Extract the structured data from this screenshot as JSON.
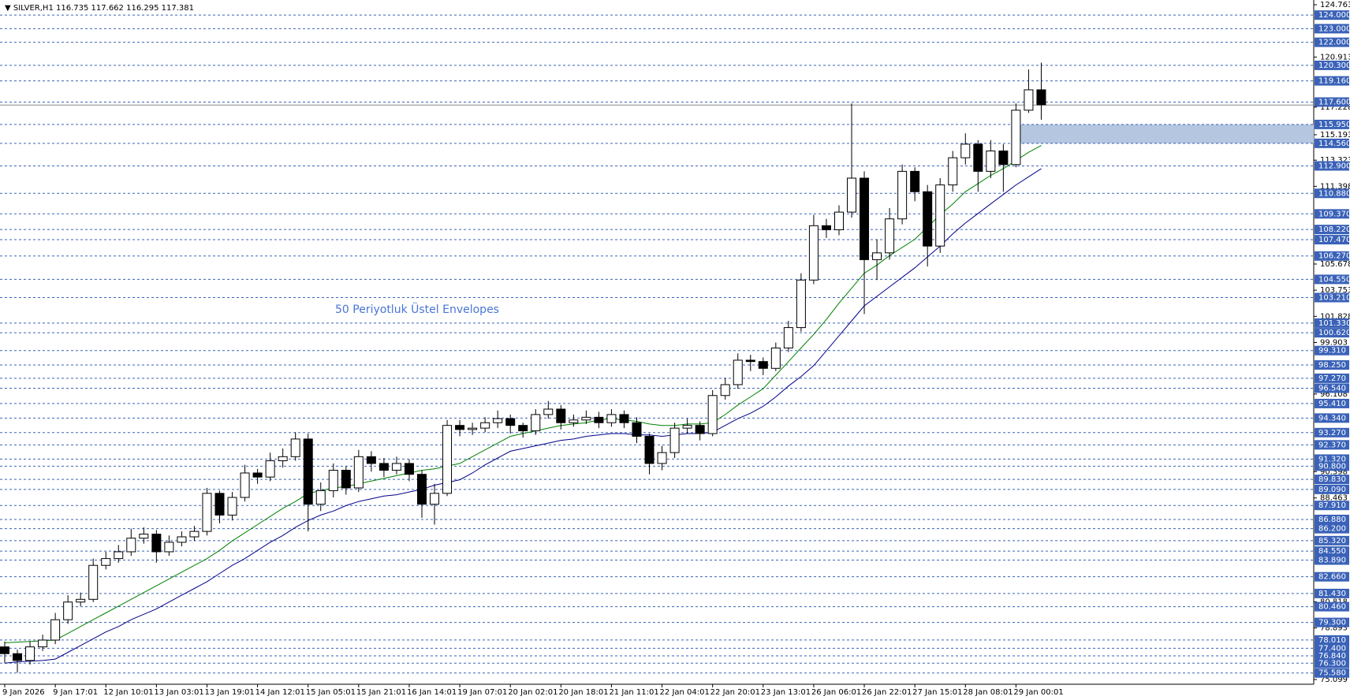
{
  "header": {
    "symbol": "SILVER,H1",
    "values": [
      116.735,
      117.662,
      116.295,
      117.381
    ]
  },
  "chart_data": {
    "type": "candlestick",
    "annotation": "50 Periyotluk Üstel Envelopes",
    "categories": [
      "9 Jan 2026",
      null,
      null,
      null,
      "9 Jan 17:01",
      null,
      null,
      null,
      "12 Jan 10:01",
      null,
      null,
      null,
      "13 Jan 03:01",
      null,
      null,
      null,
      "13 Jan 19:01",
      null,
      null,
      null,
      "14 Jan 12:01",
      null,
      null,
      null,
      "15 Jan 05:01",
      null,
      null,
      null,
      "15 Jan 21:01",
      null,
      null,
      null,
      "16 Jan 14:01",
      null,
      null,
      null,
      "19 Jan 07:01",
      null,
      null,
      null,
      "20 Jan 02:01",
      null,
      null,
      null,
      "20 Jan 18:01",
      null,
      null,
      null,
      "21 Jan 11:01",
      null,
      null,
      null,
      "22 Jan 04:01",
      null,
      null,
      null,
      "22 Jan 20:01",
      null,
      null,
      null,
      "23 Jan 13:01",
      null,
      null,
      null,
      "26 Jan 06:01",
      null,
      null,
      null,
      "26 Jan 22:01",
      null,
      null,
      null,
      "27 Jan 15:01",
      null,
      null,
      null,
      "28 Jan 08:01",
      null,
      null,
      null,
      "29 Jan 00:01",
      null,
      null
    ],
    "open": [
      77.5,
      77.0,
      76.5,
      77.5,
      78.0,
      79.5,
      80.8,
      81.0,
      83.5,
      84.0,
      84.5,
      85.5,
      85.8,
      84.5,
      85.2,
      85.6,
      86.0,
      88.8,
      87.2,
      88.5,
      90.3,
      90.0,
      91.2,
      91.5,
      92.8,
      88.0,
      89.0,
      90.5,
      89.2,
      91.5,
      91.0,
      90.5,
      91.0,
      90.2,
      88.0,
      88.8,
      93.8,
      93.5,
      93.6,
      94.0,
      94.3,
      93.8,
      93.4,
      94.6,
      95.0,
      94.0,
      94.2,
      94.4,
      94.0,
      94.6,
      94.0,
      93.0,
      91.0,
      91.8,
      93.6,
      93.8,
      93.2,
      96.0,
      96.8,
      98.6,
      98.5,
      98.0,
      99.5,
      101.0,
      104.5,
      108.5,
      108.2,
      109.5,
      112.0,
      106.0,
      106.5,
      109.0,
      112.5,
      111.0,
      107.0,
      111.5,
      113.5,
      114.5,
      112.5,
      114.0,
      113.0,
      117.0,
      118.5
    ],
    "high": [
      77.9,
      77.3,
      77.9,
      78.4,
      80.0,
      81.3,
      81.5,
      84.0,
      84.5,
      85.0,
      86.2,
      86.3,
      86.1,
      85.7,
      86.0,
      86.4,
      89.2,
      89.0,
      88.9,
      90.9,
      90.6,
      91.8,
      92.1,
      93.3,
      93.2,
      89.6,
      91.0,
      90.8,
      92.0,
      91.9,
      91.4,
      91.5,
      91.3,
      90.5,
      89.5,
      94.2,
      94.2,
      94.0,
      94.4,
      94.9,
      94.6,
      94.0,
      95.0,
      95.6,
      95.3,
      94.6,
      94.9,
      94.8,
      95.0,
      94.9,
      94.4,
      93.2,
      92.3,
      94.0,
      94.3,
      94.1,
      96.4,
      97.3,
      99.1,
      99.0,
      98.8,
      99.9,
      101.5,
      105.0,
      109.3,
      109.0,
      110.0,
      117.5,
      112.5,
      107.5,
      109.8,
      113.0,
      112.8,
      111.5,
      112.0,
      114.0,
      115.3,
      114.8,
      114.8,
      114.5,
      117.5,
      120.0,
      120.5
    ],
    "low": [
      76.3,
      75.6,
      76.2,
      77.2,
      77.7,
      79.2,
      80.5,
      80.8,
      83.2,
      83.7,
      84.2,
      85.1,
      83.7,
      84.2,
      84.9,
      85.3,
      85.7,
      86.6,
      86.8,
      88.2,
      89.5,
      89.7,
      90.7,
      91.2,
      86.0,
      87.5,
      88.5,
      88.7,
      88.9,
      90.4,
      90.0,
      90.2,
      89.7,
      87.0,
      86.5,
      88.6,
      93.0,
      93.1,
      93.3,
      93.6,
      93.2,
      92.9,
      93.1,
      94.3,
      93.5,
      93.7,
      93.9,
      93.6,
      93.7,
      93.6,
      92.5,
      90.2,
      90.5,
      91.4,
      93.2,
      92.7,
      93.0,
      95.7,
      96.5,
      97.8,
      97.5,
      97.8,
      99.2,
      100.7,
      104.2,
      107.6,
      107.8,
      109.1,
      102.0,
      104.5,
      106.0,
      108.6,
      110.3,
      105.5,
      106.5,
      111.0,
      113.0,
      111.0,
      112.0,
      111.0,
      112.8,
      116.8,
      116.3
    ],
    "close": [
      77.0,
      76.5,
      77.5,
      78.0,
      79.5,
      80.8,
      81.0,
      83.5,
      84.0,
      84.5,
      85.5,
      85.8,
      84.5,
      85.2,
      85.6,
      86.0,
      88.8,
      87.2,
      88.5,
      90.3,
      90.0,
      91.2,
      91.5,
      92.8,
      88.0,
      89.0,
      90.5,
      89.2,
      91.5,
      91.0,
      90.5,
      91.0,
      90.2,
      88.0,
      88.8,
      93.8,
      93.5,
      93.6,
      94.0,
      94.3,
      93.8,
      93.4,
      94.6,
      95.0,
      94.0,
      94.2,
      94.4,
      94.0,
      94.6,
      94.0,
      93.0,
      91.0,
      91.8,
      93.6,
      93.8,
      93.2,
      96.0,
      96.8,
      98.6,
      98.5,
      98.0,
      99.5,
      101.0,
      104.5,
      108.5,
      108.2,
      109.5,
      112.0,
      106.0,
      106.5,
      109.0,
      112.5,
      111.0,
      107.0,
      111.5,
      113.5,
      114.5,
      112.5,
      114.0,
      113.0,
      117.0,
      118.5,
      117.4
    ],
    "lines": [
      {
        "color": "#008000",
        "values": [
          77.8,
          77.85,
          77.9,
          77.95,
          78.0,
          78.5,
          79.0,
          79.5,
          80.0,
          80.5,
          81.0,
          81.5,
          82.0,
          82.5,
          83.0,
          83.5,
          84.0,
          84.6,
          85.3,
          85.9,
          86.5,
          87.1,
          87.7,
          88.2,
          88.8,
          89.0,
          89.2,
          89.3,
          89.5,
          89.7,
          89.9,
          90.1,
          90.3,
          90.5,
          90.6,
          90.8,
          91.0,
          91.5,
          92.0,
          92.5,
          93.0,
          93.2,
          93.4,
          93.6,
          93.8,
          93.9,
          94.0,
          94.2,
          94.3,
          94.2,
          94.1,
          93.9,
          93.8,
          93.8,
          93.9,
          93.9,
          94.0,
          94.6,
          95.3,
          95.9,
          96.5,
          97.5,
          98.5,
          99.5,
          100.5,
          101.6,
          102.8,
          103.9,
          105.0,
          105.6,
          106.3,
          106.9,
          107.5,
          108.4,
          109.3,
          110.1,
          111.0,
          111.6,
          112.2,
          112.7,
          113.3,
          113.9,
          114.4
        ]
      },
      {
        "color": "#00008b",
        "values": [
          76.3,
          76.4,
          76.45,
          76.5,
          76.6,
          77.1,
          77.6,
          78.1,
          78.6,
          79.0,
          79.5,
          79.9,
          80.3,
          80.8,
          81.3,
          81.8,
          82.3,
          82.9,
          83.5,
          84.0,
          84.6,
          85.2,
          85.7,
          86.3,
          86.8,
          87.2,
          87.5,
          87.9,
          88.2,
          88.4,
          88.6,
          88.7,
          88.9,
          89.1,
          89.4,
          89.6,
          89.8,
          90.3,
          90.9,
          91.4,
          91.9,
          92.1,
          92.3,
          92.5,
          92.7,
          92.8,
          93.0,
          93.1,
          93.2,
          93.2,
          93.1,
          93.1,
          93.0,
          93.1,
          93.2,
          93.2,
          93.3,
          93.8,
          94.3,
          94.7,
          95.2,
          95.9,
          96.7,
          97.4,
          98.2,
          99.3,
          100.4,
          101.5,
          102.6,
          103.3,
          104.0,
          104.7,
          105.4,
          106.2,
          107.0,
          107.9,
          108.7,
          109.4,
          110.1,
          110.8,
          111.5,
          112.1,
          112.7
        ]
      }
    ],
    "ylim": [
      75.099,
      124.763
    ],
    "yticks": [
      124.763,
      120.913,
      117.228,
      115.193,
      113.323,
      111.398,
      105.678,
      103.753,
      101.828,
      99.903,
      96.108,
      90.398,
      88.463,
      80.818,
      78.893,
      75.099
    ],
    "levels": [
      {
        "value": 124,
        "label": "124.000"
      },
      {
        "value": 123,
        "label": "123.000"
      },
      {
        "value": 122,
        "label": "122.000"
      },
      {
        "value": 120.3,
        "label": "120.300"
      },
      {
        "value": 119.16,
        "label": "119.160"
      },
      {
        "value": 117.6,
        "label": "117.600"
      },
      {
        "value": 115.95,
        "label": "115.950"
      },
      {
        "value": 114.56,
        "label": "114.560"
      },
      {
        "value": 112.9,
        "label": "112.900"
      },
      {
        "value": 110.88,
        "label": "110.880"
      },
      {
        "value": 109.37,
        "label": "109.370"
      },
      {
        "value": 108.22,
        "label": "108.220"
      },
      {
        "value": 107.47,
        "label": "107.470"
      },
      {
        "value": 106.27,
        "label": "106.270"
      },
      {
        "value": 104.55,
        "label": "104.550"
      },
      {
        "value": 103.21,
        "label": "103.210"
      },
      {
        "value": 101.33,
        "label": "101.330"
      },
      {
        "value": 100.62,
        "label": "100.620"
      },
      {
        "value": 99.31,
        "label": "99.310"
      },
      {
        "value": 98.25,
        "label": "98.250"
      },
      {
        "value": 97.27,
        "label": "97.270"
      },
      {
        "value": 96.54,
        "label": "96.540"
      },
      {
        "value": 95.41,
        "label": "95.410"
      },
      {
        "value": 94.34,
        "label": "94.340"
      },
      {
        "value": 93.27,
        "label": "93.270"
      },
      {
        "value": 92.37,
        "label": "92.370"
      },
      {
        "value": 91.32,
        "label": "91.320"
      },
      {
        "value": 90.8,
        "label": "90.800"
      },
      {
        "value": 89.83,
        "label": "89.830"
      },
      {
        "value": 89.09,
        "label": "89.090"
      },
      {
        "value": 87.91,
        "label": "87.910"
      },
      {
        "value": 86.88,
        "label": "86.880"
      },
      {
        "value": 86.2,
        "label": "86.200"
      },
      {
        "value": 85.32,
        "label": "85.320"
      },
      {
        "value": 84.55,
        "label": "84.550"
      },
      {
        "value": 83.89,
        "label": "83.890"
      },
      {
        "value": 82.66,
        "label": "82.660"
      },
      {
        "value": 81.43,
        "label": "81.430"
      },
      {
        "value": 80.46,
        "label": "80.460"
      },
      {
        "value": 79.3,
        "label": "79.300"
      },
      {
        "value": 78.01,
        "label": "78.010"
      },
      {
        "value": 77.4,
        "label": "77.400"
      },
      {
        "value": 76.84,
        "label": "76.840"
      },
      {
        "value": 76.3,
        "label": "76.300"
      },
      {
        "value": 75.58,
        "label": "75.580"
      }
    ],
    "level_color": "#3a62b8",
    "zone": [
      114.56,
      115.95
    ],
    "zone_color": "#b4c6e0"
  }
}
